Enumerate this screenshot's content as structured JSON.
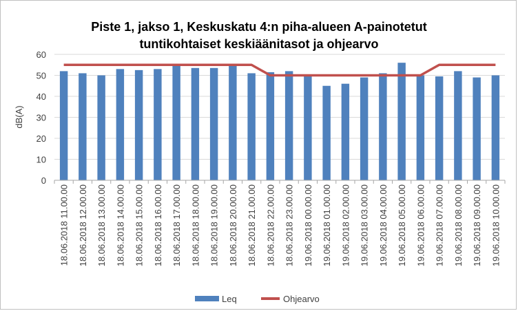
{
  "chart_data": {
    "type": "bar",
    "title_lines": [
      "Piste 1, jakso 1, Keskuskatu 4:n piha-alueen A-painotetut",
      "tuntikohtaiset keskiäänitasot ja ohjearvo"
    ],
    "xlabel": "",
    "ylabel": "dB(A)",
    "ylim": [
      0,
      60
    ],
    "yticks": [
      0,
      10,
      20,
      30,
      40,
      50,
      60
    ],
    "grid": true,
    "legend_position": "bottom",
    "categories": [
      "18.06.2018  11.00.00",
      "18.06.2018  12.00.00",
      "18.06.2018  13.00.00",
      "18.06.2018  14.00.00",
      "18.06.2018  15.00.00",
      "18.06.2018  16.00.00",
      "18.06.2018  17.00.00",
      "18.06.2018  18.00.00",
      "18.06.2018  19.00.00",
      "18.06.2018  20.00.00",
      "18.06.2018  21.00.00",
      "18.06.2018  22.00.00",
      "18.06.2018  23.00.00",
      "19.06.2018  00.00.00",
      "19.06.2018  01.00.00",
      "19.06.2018  02.00.00",
      "19.06.2018  03.00.00",
      "19.06.2018  04.00.00",
      "19.06.2018  05.00.00",
      "19.06.2018  06.00.00",
      "19.06.2018  07.00.00",
      "19.06.2018  08.00.00",
      "19.06.2018  09.00.00",
      "19.06.2018  10.00.00"
    ],
    "series": [
      {
        "name": "Leq",
        "type": "bar",
        "color": "#4f81bd",
        "values": [
          52,
          51,
          50,
          53,
          52.5,
          53,
          55,
          53.5,
          53.5,
          55,
          51,
          51.5,
          52,
          50,
          45,
          46,
          49,
          51,
          56,
          50,
          49.5,
          52,
          49,
          50
        ]
      },
      {
        "name": "Ohjearvo",
        "type": "line",
        "color": "#c0504d",
        "values": [
          55,
          55,
          55,
          55,
          55,
          55,
          55,
          55,
          55,
          55,
          55,
          50,
          50,
          50,
          50,
          50,
          50,
          50,
          50,
          50,
          55,
          55,
          55,
          55
        ]
      }
    ]
  }
}
